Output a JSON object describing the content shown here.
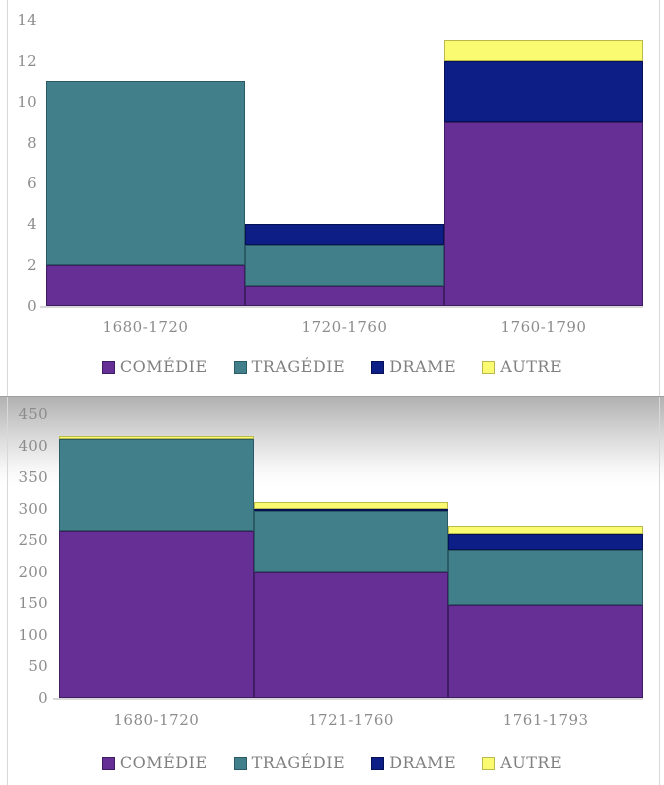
{
  "chart_data": [
    {
      "type": "bar",
      "variant": "stacked-gapless",
      "title": "",
      "xlabel": "",
      "ylabel": "",
      "categories": [
        "1680-1720",
        "1720-1760",
        "1760-1790"
      ],
      "series": [
        {
          "name": "COMÉDIE",
          "color": "#662F96",
          "border": "#3F1D63",
          "values": [
            2,
            1,
            9
          ]
        },
        {
          "name": "TRAGÉDIE",
          "color": "#417F8A",
          "border": "#2A5A63",
          "values": [
            9,
            2,
            0
          ]
        },
        {
          "name": "DRAME",
          "color": "#0D1E87",
          "border": "#061055",
          "values": [
            0,
            1,
            3
          ]
        },
        {
          "name": "AUTRE",
          "color": "#FBFB72",
          "border": "#b9b94e",
          "values": [
            0,
            0,
            1
          ]
        }
      ],
      "totals": [
        11,
        4,
        13
      ],
      "ylim": [
        0,
        14
      ],
      "yticks": [
        0,
        2,
        4,
        6,
        8,
        10,
        12,
        14
      ],
      "grid": false,
      "legend_position": "bottom"
    },
    {
      "type": "bar",
      "variant": "stacked-gapless",
      "title": "",
      "xlabel": "",
      "ylabel": "",
      "categories": [
        "1680-1720",
        "1721-1760",
        "1761-1793"
      ],
      "series": [
        {
          "name": "COMÉDIE",
          "color": "#662F96",
          "border": "#3F1D63",
          "values": [
            265,
            200,
            148
          ]
        },
        {
          "name": "TRAGÉDIE",
          "color": "#417F8A",
          "border": "#2A5A63",
          "values": [
            145,
            96,
            87
          ]
        },
        {
          "name": "DRAME",
          "color": "#0D1E87",
          "border": "#061055",
          "values": [
            0,
            4,
            25
          ]
        },
        {
          "name": "AUTRE",
          "color": "#FBFB72",
          "border": "#b9b94e",
          "values": [
            5,
            10,
            12
          ]
        }
      ],
      "totals": [
        415,
        310,
        272
      ],
      "ylim": [
        0,
        450
      ],
      "yticks": [
        0,
        50,
        100,
        150,
        200,
        250,
        300,
        350,
        400,
        450
      ],
      "grid": false,
      "legend_position": "bottom"
    }
  ],
  "colors": {
    "comedie": "#662F96",
    "tragedie": "#417F8A",
    "drame": "#0D1E87",
    "autre": "#FBFB72",
    "axis_text": "#8c8c8c",
    "legend_text": "#808080"
  }
}
